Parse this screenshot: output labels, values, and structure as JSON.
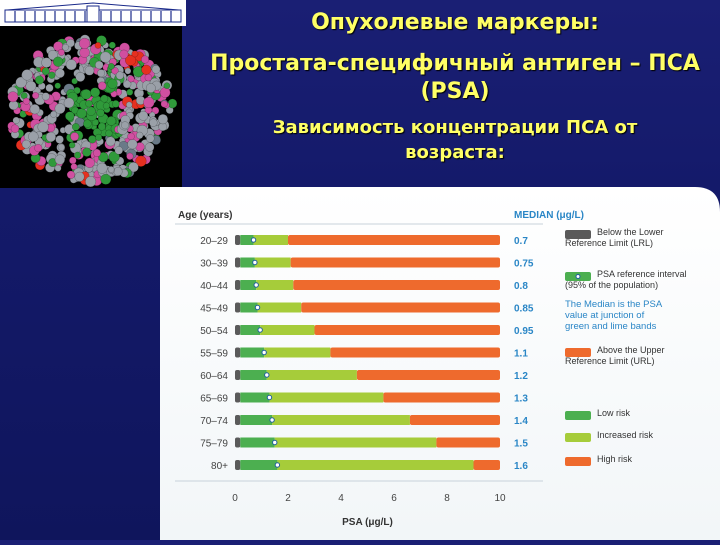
{
  "header": {
    "title": "Опухолевые маркеры:",
    "subtitle": "Простата-специфичный антиген – ПСА (PSA)",
    "subtitle2": "Зависимость концентрации ПСА от возраста:"
  },
  "colors": {
    "background": "#141a6a",
    "heading": "#ffff66",
    "below_lrl": "#5a5a5a",
    "low_risk": "#4caf50",
    "increased_risk": "#a6cc3a",
    "high_risk": "#ee6a2d",
    "median_text": "#2a86c6"
  },
  "chart_data": {
    "type": "bar",
    "orientation": "horizontal-stacked",
    "y_header": "Age (years)",
    "median_header": "MEDIAN (μg/L)",
    "xlabel": "PSA (μg/L)",
    "xlim": [
      0,
      10
    ],
    "xticks": [
      "0",
      "2",
      "4",
      "6",
      "8",
      "10"
    ],
    "lrl": 0.2,
    "rows": [
      {
        "age": "20–29",
        "median": 0.7,
        "median_label": "0.7",
        "urls": 2.0
      },
      {
        "age": "30–39",
        "median": 0.75,
        "median_label": "0.75",
        "urls": 2.1
      },
      {
        "age": "40–44",
        "median": 0.8,
        "median_label": "0.8",
        "urls": 2.2
      },
      {
        "age": "45–49",
        "median": 0.85,
        "median_label": "0.85",
        "urls": 2.5
      },
      {
        "age": "50–54",
        "median": 0.95,
        "median_label": "0.95",
        "urls": 3.0
      },
      {
        "age": "55–59",
        "median": 1.1,
        "median_label": "1.1",
        "urls": 3.6
      },
      {
        "age": "60–64",
        "median": 1.2,
        "median_label": "1.2",
        "urls": 4.6
      },
      {
        "age": "65–69",
        "median": 1.3,
        "median_label": "1.3",
        "urls": 5.6
      },
      {
        "age": "70–74",
        "median": 1.4,
        "median_label": "1.4",
        "urls": 6.6
      },
      {
        "age": "75–79",
        "median": 1.5,
        "median_label": "1.5",
        "urls": 7.6
      },
      {
        "age": "80+",
        "median": 1.6,
        "median_label": "1.6",
        "urls": 9.0
      }
    ],
    "legend": [
      {
        "key": "below",
        "swatch": "gray",
        "text": "Below the Lower Reference Limit (LRL)"
      },
      {
        "key": "ref",
        "swatch": "green",
        "text": "PSA reference interval (95% of the population)"
      },
      {
        "key": "note",
        "swatch": "none",
        "text": "The Median is the PSA value at junction of green and lime bands"
      },
      {
        "key": "above",
        "swatch": "orange",
        "text": "Above the Upper Reference Limit (URL)"
      },
      {
        "key": "low",
        "swatch": "green",
        "text": "Low risk"
      },
      {
        "key": "inc",
        "swatch": "lime",
        "text": "Increased risk"
      },
      {
        "key": "high",
        "swatch": "orange",
        "text": "High risk"
      }
    ]
  }
}
